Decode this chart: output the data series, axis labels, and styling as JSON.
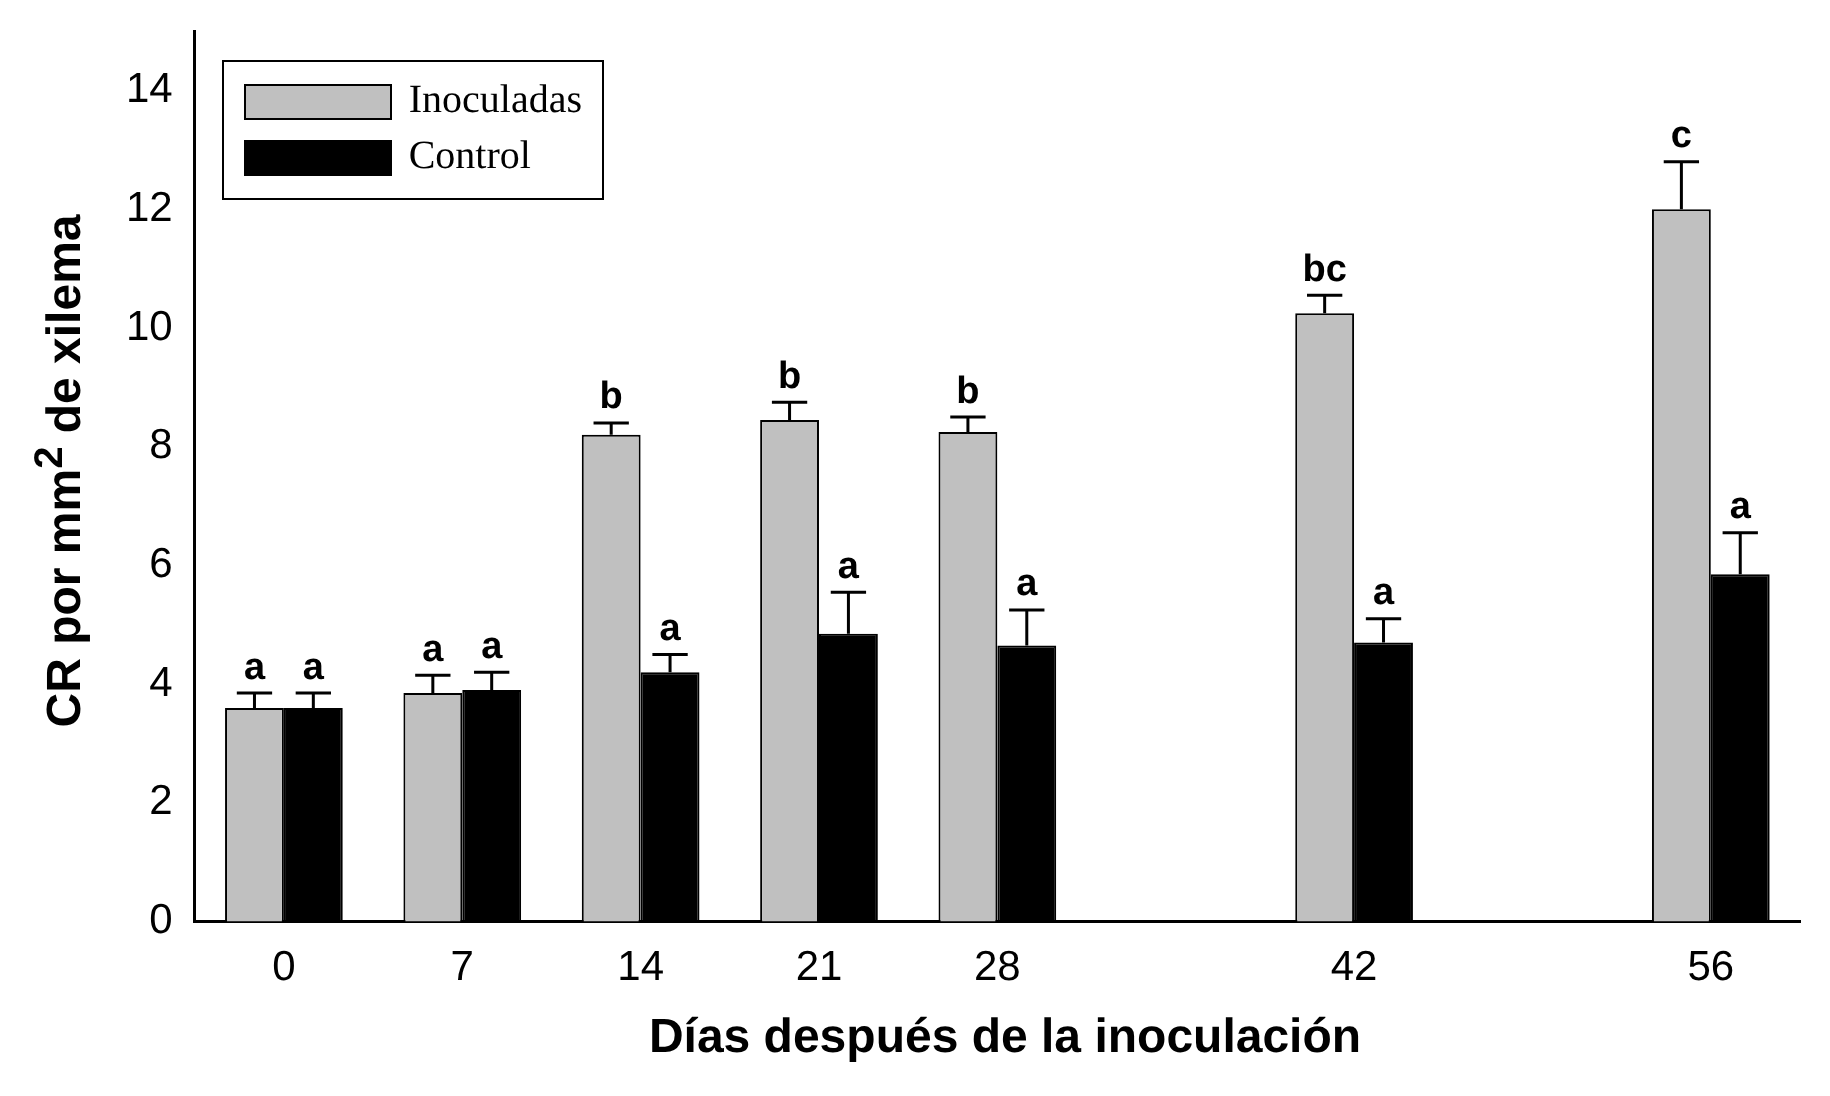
{
  "chart_data": {
    "type": "bar",
    "xlabel": "Días después de la inoculación",
    "ylabel": "CR por mm$^{2}$ de xilema",
    "categories": [
      "0",
      "7",
      "14",
      "21",
      "28",
      null,
      "42",
      null,
      "56"
    ],
    "series": [
      {
        "name": "Inoculadas",
        "color": "#c0c0c0",
        "values": [
          3.6,
          3.85,
          8.2,
          8.45,
          8.25,
          null,
          10.25,
          null,
          12.0
        ],
        "errors": [
          [
            3.6,
            3.85
          ],
          [
            3.85,
            4.15
          ],
          [
            8.2,
            8.4
          ],
          [
            8.45,
            8.75
          ],
          [
            8.25,
            8.5
          ],
          null,
          [
            10.25,
            10.55
          ],
          null,
          [
            12.0,
            12.8
          ]
        ]
      },
      {
        "name": "Control",
        "color": "#000000",
        "values": [
          3.6,
          3.9,
          4.2,
          4.85,
          4.65,
          null,
          4.7,
          null,
          5.85
        ],
        "errors": [
          [
            3.6,
            3.85
          ],
          [
            3.9,
            4.2
          ],
          [
            4.2,
            4.5
          ],
          [
            4.85,
            5.55
          ],
          [
            4.65,
            5.25
          ],
          null,
          [
            4.7,
            5.1
          ],
          null,
          [
            5.85,
            6.55
          ]
        ]
      }
    ],
    "ylim": [
      0,
      15
    ],
    "yticks": [
      0,
      2,
      4,
      6,
      8,
      10,
      12,
      14
    ],
    "legend": "top left",
    "grid": false,
    "annotations": [
      {
        "text": "a",
        "x": "0",
        "y": 3.6
      },
      {
        "text": "a",
        "x": "0",
        "y": 3.6
      },
      {
        "text": "a",
        "x": "7",
        "y": 3.85
      },
      {
        "text": "a",
        "x": "7",
        "y": 3.9
      },
      {
        "text": "b",
        "x": "14",
        "y": 8.2
      },
      {
        "text": "a",
        "x": "14",
        "y": 4.2
      },
      {
        "text": "b",
        "x": "21",
        "y": 8.45
      },
      {
        "text": "a",
        "x": "21",
        "y": 4.85
      },
      {
        "text": "b",
        "x": "28",
        "y": 8.25
      },
      {
        "text": "a",
        "x": "28",
        "y": 4.65
      },
      {
        "text": "bc",
        "x": "42",
        "y": 10.25
      },
      {
        "text": "a",
        "x": "42",
        "y": 4.7
      },
      {
        "text": "c",
        "x": "56",
        "y": 12.0
      },
      {
        "text": "a",
        "x": "56",
        "y": 5.85
      }
    ]
  }
}
